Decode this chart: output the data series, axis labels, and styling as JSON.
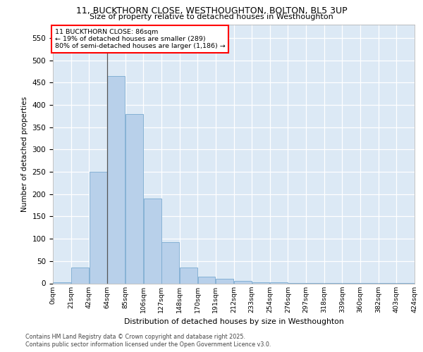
{
  "title_line1": "11, BUCKTHORN CLOSE, WESTHOUGHTON, BOLTON, BL5 3UP",
  "title_line2": "Size of property relative to detached houses in Westhoughton",
  "xlabel": "Distribution of detached houses by size in Westhoughton",
  "ylabel": "Number of detached properties",
  "bin_labels": [
    "0sqm",
    "21sqm",
    "42sqm",
    "64sqm",
    "85sqm",
    "106sqm",
    "127sqm",
    "148sqm",
    "170sqm",
    "191sqm",
    "212sqm",
    "233sqm",
    "254sqm",
    "276sqm",
    "297sqm",
    "318sqm",
    "339sqm",
    "360sqm",
    "382sqm",
    "403sqm",
    "424sqm"
  ],
  "bar_heights": [
    2,
    35,
    250,
    465,
    380,
    190,
    93,
    35,
    15,
    11,
    5,
    3,
    2,
    1,
    1,
    1,
    1,
    1,
    1,
    1
  ],
  "bar_color": "#b8d0ea",
  "bar_edge_color": "#7aaad0",
  "background_color": "#dce9f5",
  "grid_color": "#ffffff",
  "property_bin_index": 3,
  "annotation_title": "11 BUCKTHORN CLOSE: 86sqm",
  "annotation_line2": "← 19% of detached houses are smaller (289)",
  "annotation_line3": "80% of semi-detached houses are larger (1,186) →",
  "vline_bin": 3,
  "ylim_max": 580,
  "yticks": [
    0,
    50,
    100,
    150,
    200,
    250,
    300,
    350,
    400,
    450,
    500,
    550
  ],
  "footer_line1": "Contains HM Land Registry data © Crown copyright and database right 2025.",
  "footer_line2": "Contains public sector information licensed under the Open Government Licence v3.0."
}
